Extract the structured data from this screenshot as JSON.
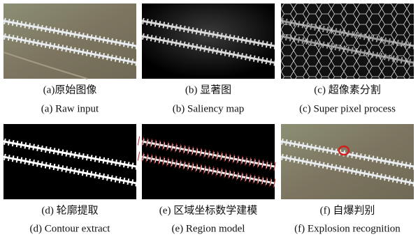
{
  "panels": [
    {
      "caption_cn": "(a)原始图像",
      "caption_en": "(a) Raw input"
    },
    {
      "caption_cn": "(b) 显著图",
      "caption_en": "(b) Saliency map"
    },
    {
      "caption_cn": "(c) 超像素分割",
      "caption_en": "(c) Super pixel process"
    },
    {
      "caption_cn": "(d) 轮廓提取",
      "caption_en": "(d) Contour extract"
    },
    {
      "caption_cn": "(e) 区域坐标数学建模",
      "caption_en": "(e) Region model"
    },
    {
      "caption_cn": "(f) 自爆判别",
      "caption_en": "(f) Explosion recognition"
    }
  ]
}
